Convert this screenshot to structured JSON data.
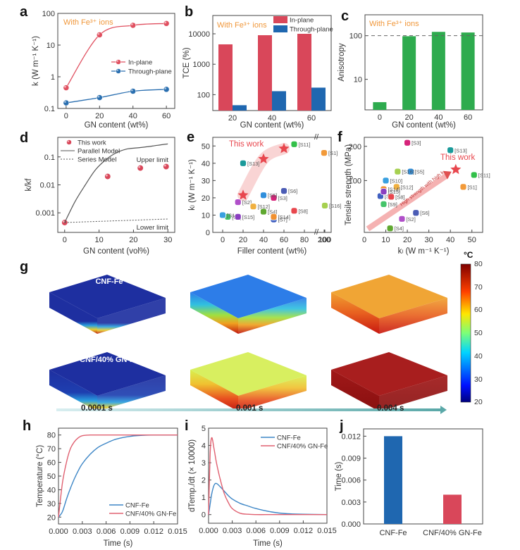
{
  "figure": {
    "panel_labels": [
      "a",
      "b",
      "c",
      "d",
      "e",
      "f",
      "g",
      "h",
      "i",
      "j"
    ]
  },
  "chart_data": [
    {
      "id": "a",
      "type": "line",
      "annotation": "With Fe³⁺ ions",
      "xlabel": "GN content (wt%)",
      "ylabel": "k (W m⁻¹ K⁻¹)",
      "yscale": "log",
      "ylim": [
        0.1,
        100
      ],
      "xlim": [
        -5,
        65
      ],
      "xticks": [
        0,
        20,
        40,
        60
      ],
      "yticks": [
        0.1,
        1,
        10,
        100
      ],
      "ytick_labels": [
        "0.1",
        "1",
        "10",
        "100"
      ],
      "x": [
        0,
        20,
        40,
        60
      ],
      "series": [
        {
          "name": "In-plane",
          "color": "#e05060",
          "values": [
            0.45,
            21,
            42,
            48
          ]
        },
        {
          "name": "Through-plane",
          "color": "#2a6fb0",
          "values": [
            0.15,
            0.22,
            0.35,
            0.4
          ]
        }
      ],
      "legend": "center-right"
    },
    {
      "id": "b",
      "type": "bar",
      "annotation": "With Fe³⁺ ions",
      "xlabel": "GN content (wt%)",
      "ylabel": "TCE (%)",
      "yscale": "log",
      "ylim": [
        30,
        40000
      ],
      "categories": [
        "20",
        "40",
        "60"
      ],
      "yticks": [
        100,
        1000,
        10000
      ],
      "ytick_labels": [
        "100",
        "1000",
        "10000"
      ],
      "series": [
        {
          "name": "In-plane",
          "color": "#d9475a",
          "values": [
            4500,
            9000,
            10000
          ]
        },
        {
          "name": "Through-plane",
          "color": "#1f67b0",
          "values": [
            45,
            130,
            170
          ]
        }
      ],
      "legend": "top-right"
    },
    {
      "id": "c",
      "type": "bar",
      "annotation": "With Fe³⁺ ions",
      "xlabel": "GN content (wt%)",
      "ylabel": "Anisotropy",
      "yscale": "log",
      "ylim": [
        2,
        300
      ],
      "categories": [
        "0",
        "20",
        "40",
        "60"
      ],
      "yticks": [
        10,
        100
      ],
      "ytick_labels": [
        "10",
        "100"
      ],
      "reference_line": 100,
      "series": [
        {
          "name": "Anisotropy",
          "color": "#2eab4e",
          "values": [
            3,
            97,
            122,
            118
          ]
        }
      ]
    },
    {
      "id": "d",
      "type": "scatter",
      "xlabel": "GN content (vol%)",
      "ylabel": "k/kf",
      "yscale": "log",
      "ylim": [
        0.0002,
        0.5
      ],
      "xlim": [
        -2,
        32
      ],
      "xticks": [
        0,
        10,
        20,
        30
      ],
      "yticks": [
        0.001,
        0.01,
        0.1
      ],
      "ytick_labels": [
        "0.001",
        "0.01",
        "0.1"
      ],
      "series": [
        {
          "name": "This work",
          "color": "#d9475a",
          "kind": "points",
          "x": [
            0,
            12.5,
            22,
            29.5
          ],
          "values": [
            0.00045,
            0.02,
            0.04,
            0.045
          ]
        },
        {
          "name": "Parallel Model",
          "color": "#555555",
          "kind": "solid",
          "x": [
            0,
            3,
            6,
            9,
            12,
            15,
            18,
            21,
            24,
            27,
            30
          ],
          "values": [
            0.00045,
            0.0025,
            0.01,
            0.035,
            0.08,
            0.14,
            0.19,
            0.21,
            0.23,
            0.26,
            0.29
          ]
        },
        {
          "name": "Series Model",
          "color": "#555555",
          "kind": "dotted",
          "x": [
            0,
            30
          ],
          "values": [
            0.00045,
            0.0006
          ]
        }
      ],
      "annotations": [
        "Upper limit",
        "Lower limit"
      ],
      "legend": "top-left"
    },
    {
      "id": "e",
      "type": "scatter",
      "xlabel": "Filler content (wt%)",
      "ylabel": "kₗ (W m⁻¹ K⁻¹)",
      "xticks": [
        "0",
        "20",
        "40",
        "60",
        "80",
        "100",
        "200"
      ],
      "ylim": [
        0,
        55
      ],
      "yticks": [
        0,
        10,
        20,
        30,
        40,
        50
      ],
      "this_work_label": "This work",
      "this_work": {
        "x": [
          20,
          40,
          60
        ],
        "values": [
          21.5,
          42.5,
          48.5
        ],
        "color": "#e8474e"
      },
      "points": [
        {
          "label": "[S1]",
          "x": 200,
          "y": 46,
          "color": "#f29a3a"
        },
        {
          "label": "[S2]",
          "x": 15,
          "y": 17.5,
          "color": "#b04fc9"
        },
        {
          "label": "[S3]",
          "x": 50,
          "y": 20,
          "color": "#d6237a"
        },
        {
          "label": "[S4]",
          "x": 40,
          "y": 12,
          "color": "#5fa830"
        },
        {
          "label": "[S5]",
          "x": 40,
          "y": 21.5,
          "color": "#2f8fdc"
        },
        {
          "label": "[S6]",
          "x": 60,
          "y": 24,
          "color": "#4b5cb5"
        },
        {
          "label": "[S7]",
          "x": 50,
          "y": 7.5,
          "color": "#4060c0"
        },
        {
          "label": "[S8]",
          "x": 70,
          "y": 12.5,
          "color": "#e8474e"
        },
        {
          "label": "[S9]",
          "x": 5,
          "y": 9,
          "color": "#45c46a"
        },
        {
          "label": "[S10]",
          "x": 0,
          "y": 10,
          "color": "#3aa0e0"
        },
        {
          "label": "[S11]",
          "x": 70,
          "y": 51,
          "color": "#33c04a"
        },
        {
          "label": "[S12]",
          "x": 30,
          "y": 15,
          "color": "#f0b040"
        },
        {
          "label": "[S13]",
          "x": 20,
          "y": 40,
          "color": "#1a9a9a"
        },
        {
          "label": "[S14]",
          "x": 50,
          "y": 9,
          "color": "#f09030"
        },
        {
          "label": "[S15]",
          "x": 15,
          "y": 9,
          "color": "#8a3fc0"
        },
        {
          "label": "[S16]",
          "x": 100,
          "y": 15.5,
          "color": "#a6d050"
        }
      ]
    },
    {
      "id": "f",
      "type": "scatter",
      "xlabel": "kₗ (W m⁻¹ K⁻¹)",
      "ylabel": "Tensile strength (MPa)",
      "yscale": "log",
      "xlim": [
        0,
        55
      ],
      "ylim": [
        35,
        240
      ],
      "xticks": [
        0,
        10,
        20,
        30,
        40,
        50
      ],
      "yticks": [
        100,
        200
      ],
      "ytick_labels": [
        "100",
        "200"
      ],
      "this_work_label": "This work",
      "arrow_label": "High strength with high kₗ",
      "this_work": {
        "x": 42.5,
        "y": 125,
        "color": "#e8474e"
      },
      "points": [
        {
          "label": "[S1]",
          "x": 46,
          "y": 88,
          "color": "#f29a3a"
        },
        {
          "label": "[S2]",
          "x": 17.5,
          "y": 46,
          "color": "#b04fc9"
        },
        {
          "label": "[S3]",
          "x": 20,
          "y": 215,
          "color": "#d6237a"
        },
        {
          "label": "[S4]",
          "x": 12,
          "y": 38,
          "color": "#5fa830"
        },
        {
          "label": "[S5]",
          "x": 21.5,
          "y": 120,
          "color": "#2f8fdc"
        },
        {
          "label": "[S6]",
          "x": 24,
          "y": 52,
          "color": "#4b5cb5"
        },
        {
          "label": "[S7]",
          "x": 7.5,
          "y": 73,
          "color": "#4060c0"
        },
        {
          "label": "[S8]",
          "x": 12.5,
          "y": 72,
          "color": "#e8474e"
        },
        {
          "label": "[S9]",
          "x": 9,
          "y": 62,
          "color": "#45c46a"
        },
        {
          "label": "[S10]",
          "x": 10,
          "y": 100,
          "color": "#3aa0e0"
        },
        {
          "label": "[S11]",
          "x": 51,
          "y": 112,
          "color": "#33c04a"
        },
        {
          "label": "[S12]",
          "x": 15,
          "y": 88,
          "color": "#f0b040"
        },
        {
          "label": "[S13]",
          "x": 40,
          "y": 185,
          "color": "#1a9a9a"
        },
        {
          "label": "[S14]",
          "x": 9,
          "y": 84,
          "color": "#f09030"
        },
        {
          "label": "[S15]",
          "x": 9,
          "y": 80,
          "color": "#8a3fc0"
        },
        {
          "label": "[S16]",
          "x": 15.5,
          "y": 120,
          "color": "#a6d050"
        }
      ]
    },
    {
      "id": "h",
      "type": "line",
      "xlabel": "Time (s)",
      "ylabel": "Temperature (°C)",
      "xlim": [
        0,
        0.015
      ],
      "ylim": [
        15,
        85
      ],
      "xticks": [
        "0.000",
        "0.003",
        "0.006",
        "0.009",
        "0.012",
        "0.015"
      ],
      "yticks": [
        20,
        30,
        40,
        50,
        60,
        70,
        80
      ],
      "x": [
        0,
        0.0005,
        0.001,
        0.0015,
        0.002,
        0.0025,
        0.003,
        0.004,
        0.005,
        0.006,
        0.007,
        0.008,
        0.009,
        0.01,
        0.012,
        0.015
      ],
      "series": [
        {
          "name": "CNF-Fe",
          "color": "#3d86c6",
          "values": [
            20,
            24,
            33,
            41,
            48,
            54,
            59,
            66,
            71,
            74,
            76.5,
            78,
            79,
            79.6,
            80,
            80
          ]
        },
        {
          "name": "CNF/40% GN-Fe",
          "color": "#e06070",
          "values": [
            20,
            45,
            60,
            70,
            75,
            78,
            79.5,
            80,
            80,
            80,
            80,
            80,
            80,
            80,
            80,
            80
          ]
        }
      ],
      "legend": "bottom-right"
    },
    {
      "id": "i",
      "type": "line",
      "xlabel": "Time (s)",
      "ylabel": "dTemp./dt (× 10000)",
      "xlim": [
        0,
        0.015
      ],
      "ylim": [
        -0.5,
        5
      ],
      "xticks": [
        "0.000",
        "0.003",
        "0.006",
        "0.009",
        "0.012",
        "0.015"
      ],
      "yticks": [
        0,
        1,
        2,
        3,
        4,
        5
      ],
      "x": [
        0,
        0.0002,
        0.0004,
        0.0007,
        0.001,
        0.0015,
        0.002,
        0.0025,
        0.003,
        0.004,
        0.005,
        0.006,
        0.008,
        0.01,
        0.012,
        0.015
      ],
      "series": [
        {
          "name": "CNF-Fe",
          "color": "#3d86c6",
          "values": [
            0,
            0.6,
            1.2,
            1.7,
            1.8,
            1.6,
            1.35,
            1.1,
            0.9,
            0.65,
            0.5,
            0.35,
            0.15,
            0.05,
            0.02,
            0
          ]
        },
        {
          "name": "CNF/40% GN-Fe",
          "color": "#e06070",
          "values": [
            0,
            3.5,
            4.45,
            3.8,
            3.0,
            2.0,
            1.2,
            0.7,
            0.35,
            0.08,
            0.02,
            0,
            0,
            0,
            0,
            0
          ]
        }
      ],
      "legend": "top-right"
    },
    {
      "id": "j",
      "type": "bar",
      "xlabel": "",
      "ylabel": "Time (s)",
      "ylim": [
        0,
        0.013
      ],
      "yticks": [
        "0.000",
        "0.003",
        "0.006",
        "0.009",
        "0.012"
      ],
      "categories": [
        "CNF-Fe",
        "CNF/40% GN-Fe"
      ],
      "values": [
        0.012,
        0.004
      ],
      "colors": [
        "#1f67b0",
        "#d9475a"
      ]
    }
  ],
  "simulation": {
    "rows": [
      {
        "label": "CNF-Fe"
      },
      {
        "label": "CNF/40% GN-Fe"
      }
    ],
    "times": [
      "0.0001 s",
      "0.001 s",
      "0.004 s"
    ],
    "colorbar": {
      "unit": "°C",
      "min": 20,
      "max": 80,
      "ticks": [
        "80",
        "70",
        "60",
        "50",
        "40",
        "30",
        "20"
      ]
    }
  }
}
